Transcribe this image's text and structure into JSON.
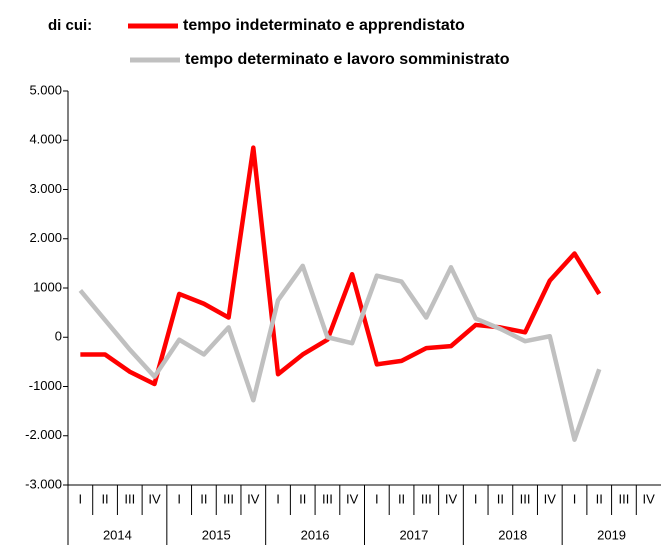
{
  "chart_data": {
    "type": "line",
    "legend_heading": "di cui:",
    "categories": [
      "I",
      "II",
      "III",
      "IV",
      "I",
      "II",
      "III",
      "IV",
      "I",
      "II",
      "III",
      "IV",
      "I",
      "II",
      "III",
      "IV",
      "I",
      "II",
      "III",
      "IV",
      "I",
      "II",
      "III",
      "IV"
    ],
    "groups": [
      "2014",
      "2015",
      "2016",
      "2017",
      "2018",
      "2019"
    ],
    "series": [
      {
        "name": "tempo indeterminato e apprendistato",
        "color": "#ff0000",
        "values": [
          -350,
          -350,
          -700,
          -950,
          880,
          680,
          400,
          3850,
          -750,
          -350,
          -50,
          1280,
          -550,
          -480,
          -220,
          -180,
          250,
          200,
          100,
          1150,
          1700,
          880,
          null,
          null
        ]
      },
      {
        "name": "tempo determinato e lavoro somministrato",
        "color": "#c0c0c0",
        "values": [
          950,
          350,
          -250,
          -800,
          -50,
          -350,
          200,
          -1280,
          750,
          1450,
          0,
          -120,
          1250,
          1130,
          400,
          1420,
          380,
          170,
          -80,
          20,
          -2080,
          -650,
          null,
          null
        ]
      }
    ],
    "ylim": [
      -3000,
      5000
    ],
    "yticks": [
      {
        "value": -3000,
        "label": "-3.000"
      },
      {
        "value": -2000,
        "label": "-2.000"
      },
      -1000,
      0,
      1000,
      {
        "value": 2000,
        "label": "2.000"
      },
      {
        "value": 3000,
        "label": "3.000"
      },
      {
        "value": 4000,
        "label": "4.000"
      },
      {
        "value": 5000,
        "label": "5.000"
      }
    ],
    "grid": false
  }
}
